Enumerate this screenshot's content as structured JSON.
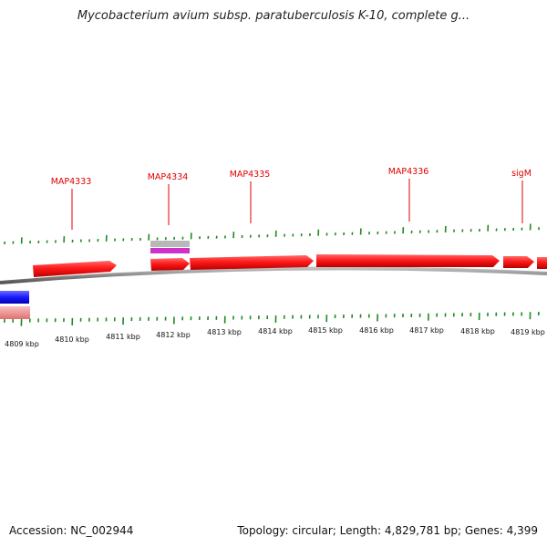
{
  "title": "Mycobacterium avium subsp. paratuberculosis K-10, complete g...",
  "footer": {
    "accession": "Accession: NC_002944",
    "summary": "Topology: circular; Length: 4,829,781 bp; Genes: 4,399"
  },
  "gene_labels": [
    {
      "name": "MAP4333"
    },
    {
      "name": "MAP4334"
    },
    {
      "name": "MAP4335"
    },
    {
      "name": "MAP4336"
    },
    {
      "name": "sigM"
    }
  ],
  "kbp_ticks": [
    "4809 kbp",
    "4810 kbp",
    "4811 kbp",
    "4812 kbp",
    "4813 kbp",
    "4814 kbp",
    "4815 kbp",
    "4816 kbp",
    "4817 kbp",
    "4818 kbp",
    "4819 kbp"
  ],
  "colors": {
    "forward_gene": "#ff1a1a",
    "reverse_gene": "#1a1aff",
    "reverse_gene_light": "#f29a9a",
    "rna_feature": "#cc33cc",
    "rna_feature_gray": "#b0b0b0",
    "tick": "#1f8a1f",
    "label": "#e00000",
    "backbone": "#8a8a8a"
  }
}
